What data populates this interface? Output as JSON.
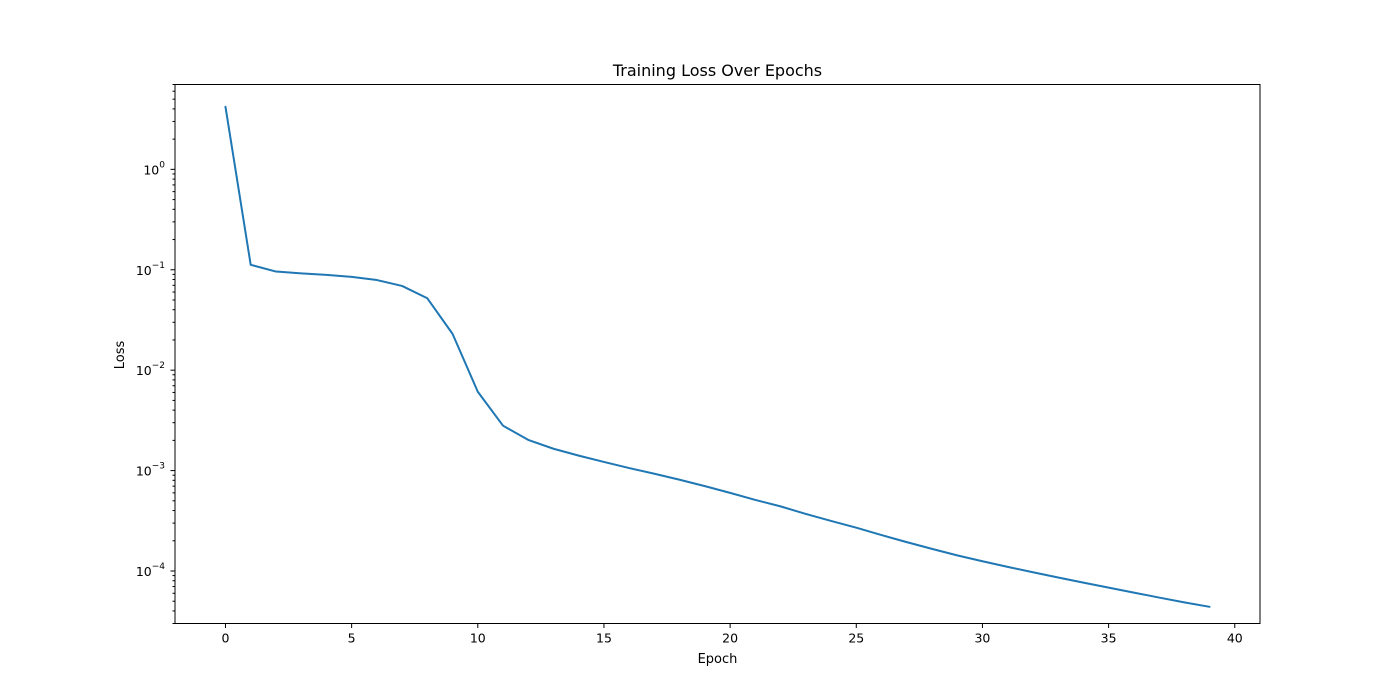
{
  "chart_data": {
    "type": "line",
    "title": "Training Loss Over Epochs",
    "xlabel": "Epoch",
    "ylabel": "Loss",
    "yscale": "log",
    "grid": false,
    "xlim": [
      -2,
      41
    ],
    "ylim": [
      3e-05,
      7
    ],
    "x_ticks": [
      0,
      5,
      10,
      15,
      20,
      25,
      30,
      35,
      40
    ],
    "y_ticks": [
      {
        "value": 1,
        "base": "10",
        "exp": "0"
      },
      {
        "value": 0.1,
        "base": "10",
        "exp": "−1"
      },
      {
        "value": 0.01,
        "base": "10",
        "exp": "−2"
      },
      {
        "value": 0.001,
        "base": "10",
        "exp": "−3"
      },
      {
        "value": 0.0001,
        "base": "10",
        "exp": "−4"
      }
    ],
    "line_color": "#1f77b4",
    "series": [
      {
        "x": [
          0,
          1,
          2,
          3,
          4,
          5,
          6,
          7,
          8,
          9,
          10,
          11,
          12,
          13,
          14,
          15,
          16,
          17,
          18,
          19,
          20,
          21,
          22,
          23,
          24,
          25,
          26,
          27,
          28,
          29,
          30,
          31,
          32,
          33,
          34,
          35,
          36,
          37,
          38,
          39
        ],
        "values": [
          4.2,
          0.112,
          0.096,
          0.092,
          0.089,
          0.085,
          0.079,
          0.069,
          0.052,
          0.023,
          0.0061,
          0.0028,
          0.00202,
          0.00165,
          0.00141,
          0.00122,
          0.00106,
          0.00093,
          0.00081,
          0.0007,
          0.0006,
          0.00051,
          0.00044,
          0.00037,
          0.000315,
          0.00027,
          0.000228,
          0.000194,
          0.000166,
          0.000143,
          0.000125,
          0.00011,
          9.72e-05,
          8.62e-05,
          7.66e-05,
          6.83e-05,
          6.09e-05,
          5.44e-05,
          4.87e-05,
          4.4e-05
        ]
      }
    ]
  }
}
